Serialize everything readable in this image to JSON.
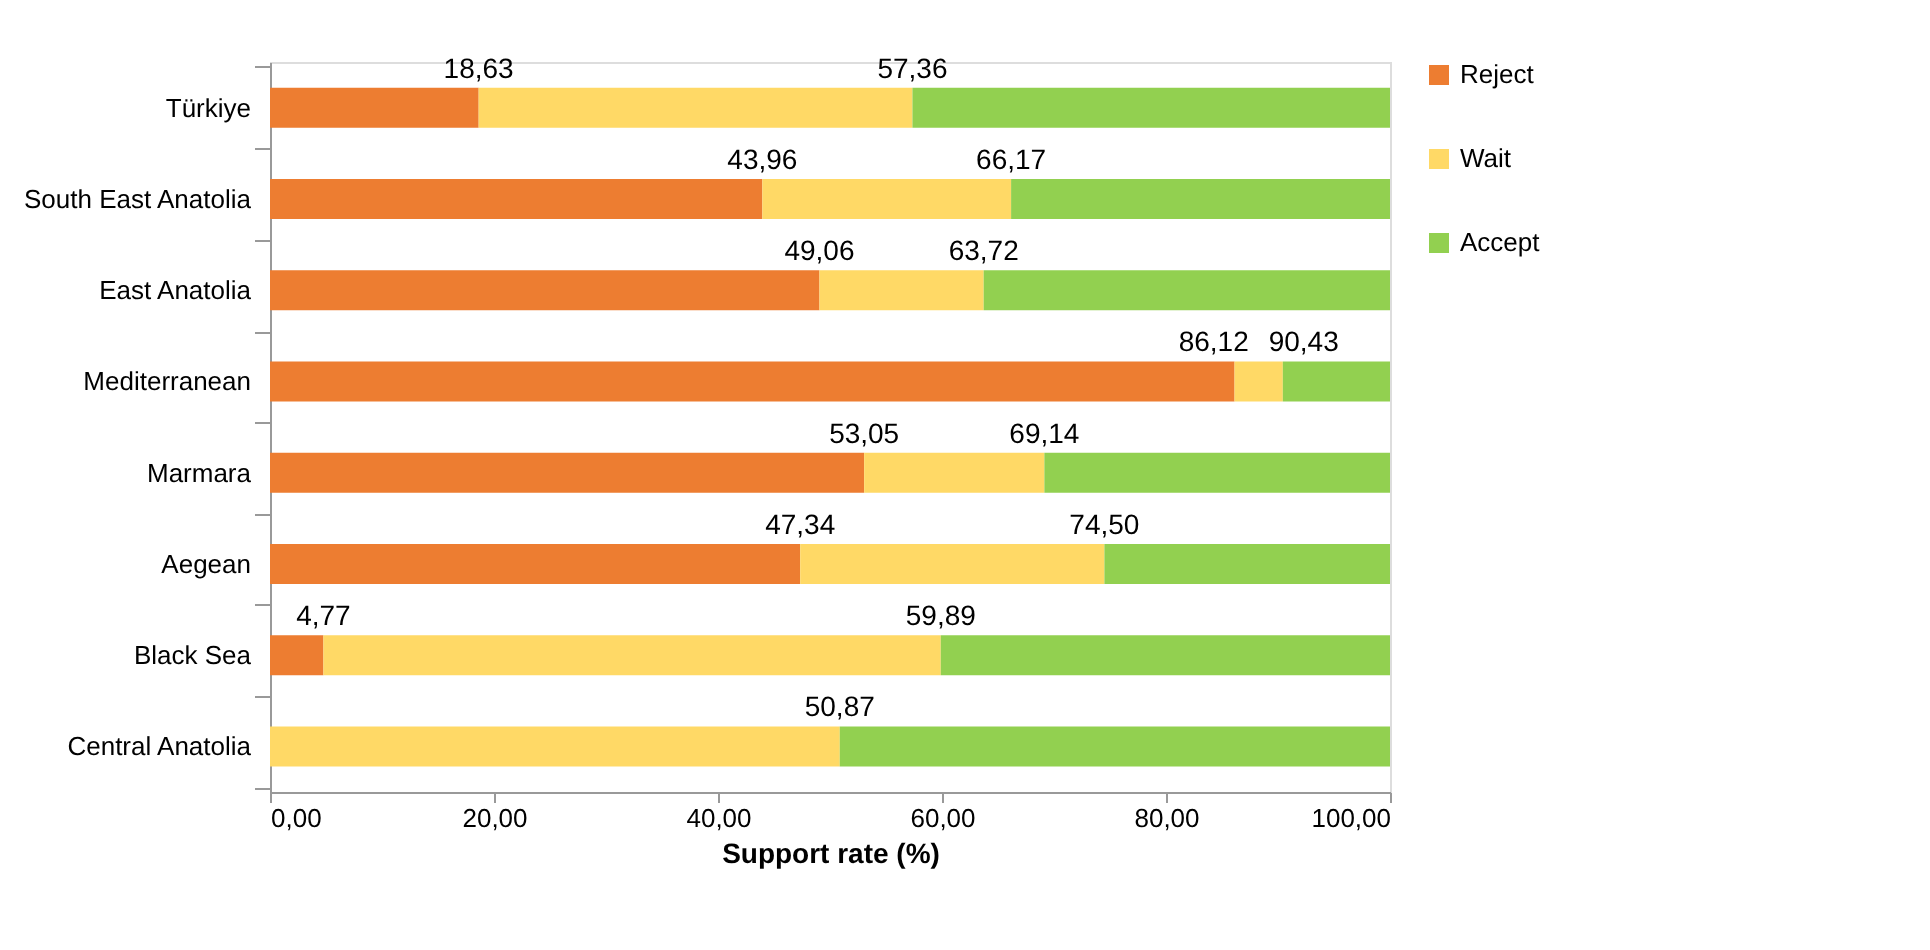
{
  "chart_data": {
    "type": "bar",
    "orientation": "horizontal",
    "stacked": true,
    "xlabel": "Support rate (%)",
    "categories": [
      "Türkiye",
      "South East Anatolia",
      "East Anatolia",
      "Mediterranean",
      "Marmara",
      "Aegean",
      "Black Sea",
      "Central Anatolia"
    ],
    "series": [
      {
        "name": "Reject",
        "color": "#ed7d31",
        "values": [
          18.63,
          43.96,
          49.06,
          86.12,
          53.05,
          47.34,
          4.77,
          0
        ]
      },
      {
        "name": "Wait",
        "color": "#ffd966",
        "values": [
          38.73,
          22.21,
          14.66,
          4.31,
          16.09,
          27.16,
          55.12,
          50.87
        ]
      },
      {
        "name": "Accept",
        "color": "#92d050",
        "values": [
          42.64,
          33.83,
          36.28,
          9.57,
          30.86,
          25.5,
          40.11,
          49.13
        ]
      }
    ],
    "annotations": [
      {
        "text": "18,63",
        "x": 18.63,
        "y": "Türkiye"
      },
      {
        "text": "57,36",
        "x": 57.36,
        "y": "Türkiye"
      },
      {
        "text": "43,96",
        "x": 43.96,
        "y": "South East Anatolia"
      },
      {
        "text": "66,17",
        "x": 66.17,
        "y": "South East Anatolia"
      },
      {
        "text": "49,06",
        "x": 49.06,
        "y": "East Anatolia"
      },
      {
        "text": "63,72",
        "x": 63.72,
        "y": "East Anatolia"
      },
      {
        "text": "86,12",
        "x": 86.12,
        "y": "Mediterranean"
      },
      {
        "text": "90,43",
        "x": 90.43,
        "y": "Mediterranean"
      },
      {
        "text": "53,05",
        "x": 53.05,
        "y": "Marmara"
      },
      {
        "text": "69,14",
        "x": 69.14,
        "y": "Marmara"
      },
      {
        "text": "47,34",
        "x": 47.34,
        "y": "Aegean"
      },
      {
        "text": "74,50",
        "x": 74.5,
        "y": "Aegean"
      },
      {
        "text": "4,77",
        "x": 4.77,
        "y": "Black Sea"
      },
      {
        "text": "59,89",
        "x": 59.89,
        "y": "Black Sea"
      },
      {
        "text": "50,87",
        "x": 50.87,
        "y": "Central Anatolia"
      }
    ],
    "xlim": [
      0,
      100
    ],
    "xticks": [
      {
        "value": 0,
        "label": "0,00"
      },
      {
        "value": 20,
        "label": "20,00"
      },
      {
        "value": 40,
        "label": "40,00"
      },
      {
        "value": 60,
        "label": "60,00"
      },
      {
        "value": 80,
        "label": "80,00"
      },
      {
        "value": 100,
        "label": "100,00"
      }
    ],
    "grid": false,
    "legend": "right"
  }
}
